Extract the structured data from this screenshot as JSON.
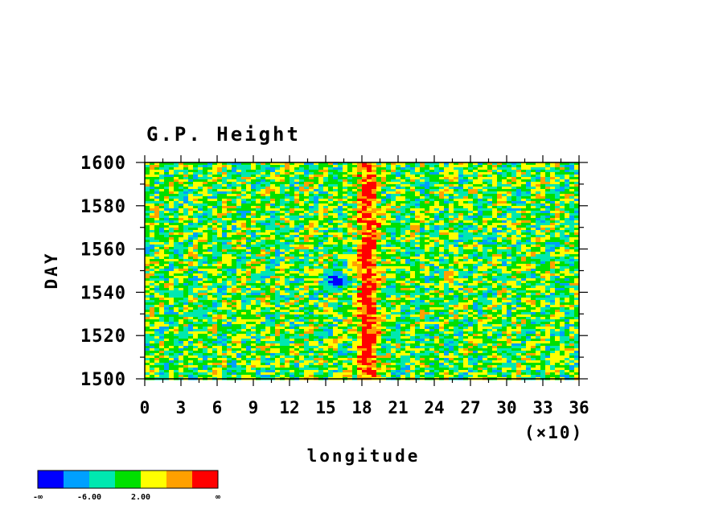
{
  "chart_data": {
    "type": "heatmap",
    "title": "G.P. Height",
    "xlabel": "longitude",
    "ylabel": "DAY",
    "x_scale_note": "(×10)",
    "xlim": [
      0,
      36
    ],
    "ylim": [
      1500,
      1600
    ],
    "x_ticks": [
      "0",
      "3",
      "6",
      "9",
      "12",
      "15",
      "18",
      "21",
      "24",
      "27",
      "30",
      "33",
      "36"
    ],
    "y_ticks": [
      "1500",
      "1520",
      "1540",
      "1560",
      "1580",
      "1600"
    ],
    "colorbar": {
      "colors": [
        "#0000ff",
        "#00a0ff",
        "#00e8b0",
        "#00e000",
        "#ffff00",
        "#ffa000",
        "#ff0000"
      ],
      "labels": [
        "-∞",
        "-6.00",
        "2.00",
        "∞"
      ]
    },
    "features": [
      {
        "description": "anomaly band",
        "x": 18.5,
        "y_range": [
          1500,
          1600
        ],
        "level": "high"
      },
      {
        "description": "anomaly spot",
        "x": 16,
        "y": 1545,
        "level": "low"
      }
    ]
  }
}
